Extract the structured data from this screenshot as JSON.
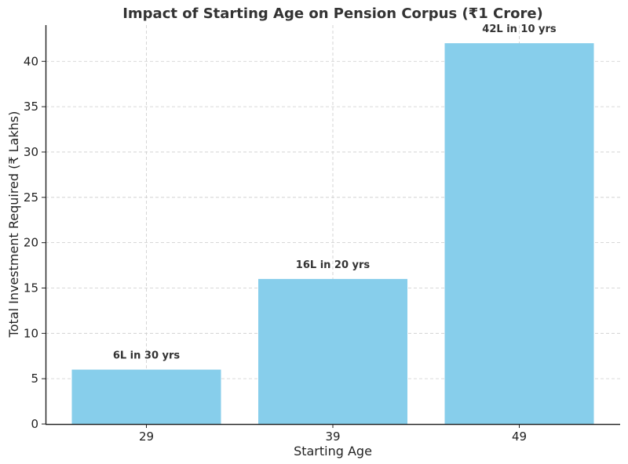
{
  "chart_data": {
    "type": "bar",
    "title": "Impact of Starting Age on Pension Corpus (₹1 Crore)",
    "xlabel": "Starting Age",
    "ylabel": "Total Investment Required (₹ Lakhs)",
    "categories": [
      "29",
      "39",
      "49"
    ],
    "values": [
      6,
      16,
      42
    ],
    "data_labels": [
      "6L in 30 yrs",
      "16L in 20 yrs",
      "42L in 10 yrs"
    ],
    "yticks": [
      0,
      5,
      10,
      15,
      20,
      25,
      30,
      35,
      40
    ],
    "ylim": [
      0,
      44
    ],
    "grid": true,
    "bar_color": "#87CEEB"
  }
}
